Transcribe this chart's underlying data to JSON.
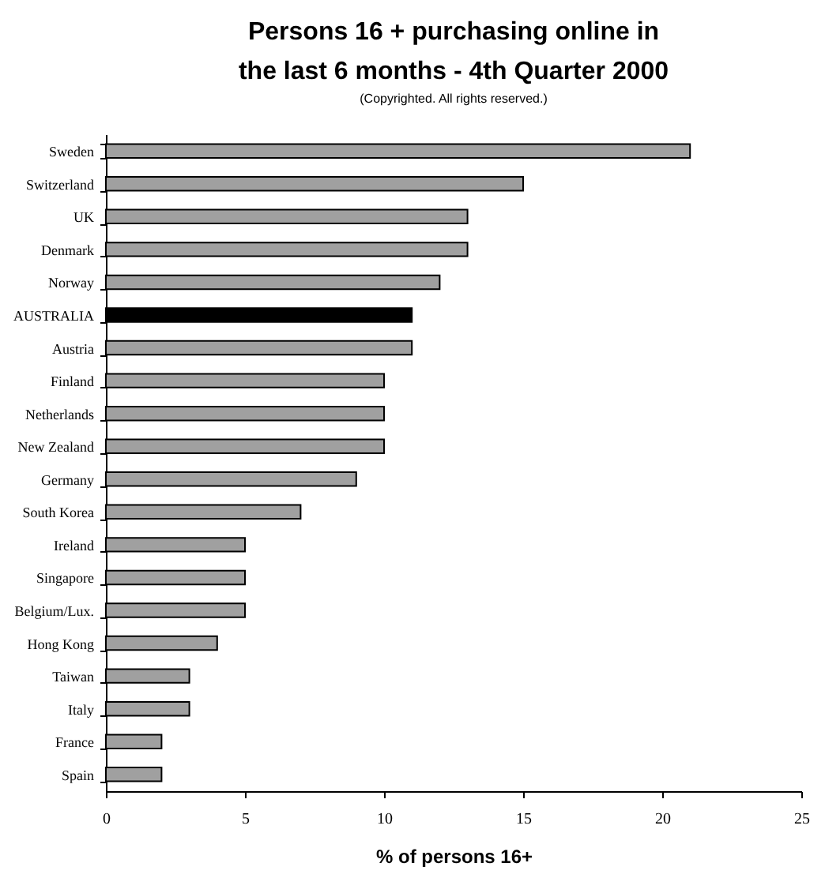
{
  "chart_data": {
    "type": "bar",
    "orientation": "horizontal",
    "title": "Persons 16 + purchasing online in\nthe last 6 months - 4th Quarter 2000",
    "subtitle": "(Copyrighted. All rights reserved.)",
    "xlabel": "% of persons 16+",
    "categories": [
      "Sweden",
      "Switzerland",
      "UK",
      "Denmark",
      "Norway",
      "AUSTRALIA",
      "Austria",
      "Finland",
      "Netherlands",
      "New Zealand",
      "Germany",
      "South Korea",
      "Ireland",
      "Singapore",
      "Belgium/Lux.",
      "Hong Kong",
      "Taiwan",
      "Italy",
      "France",
      "Spain"
    ],
    "values": [
      21,
      15,
      13,
      13,
      12,
      11,
      11,
      10,
      10,
      10,
      9,
      7,
      5,
      5,
      5,
      4,
      3,
      3,
      2,
      2
    ],
    "colors": [
      "#a0a0a0",
      "#a0a0a0",
      "#a0a0a0",
      "#a0a0a0",
      "#a0a0a0",
      "#000000",
      "#a0a0a0",
      "#a0a0a0",
      "#a0a0a0",
      "#a0a0a0",
      "#a0a0a0",
      "#a0a0a0",
      "#a0a0a0",
      "#a0a0a0",
      "#a0a0a0",
      "#a0a0a0",
      "#a0a0a0",
      "#a0a0a0",
      "#a0a0a0",
      "#a0a0a0"
    ],
    "xlim": [
      0,
      25
    ],
    "xticks": [
      0,
      5,
      10,
      15,
      20,
      25
    ]
  }
}
